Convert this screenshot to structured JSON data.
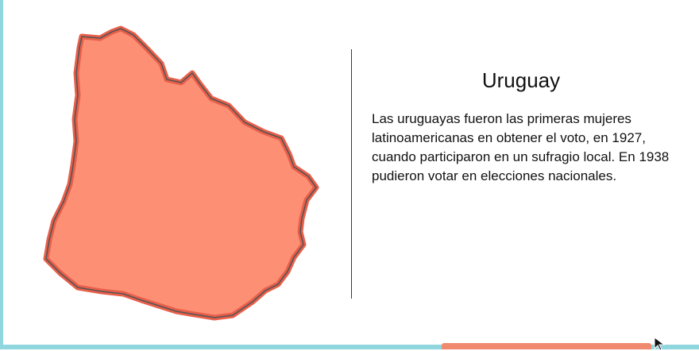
{
  "country": {
    "name": "Uruguay",
    "description": "Las uruguayas fueron las primeras mujeres latinoamericanas en obtener el voto, en 1927, cuando participaron en un sufragio local. En 1938 pudieron votar en elecciones nacionales."
  },
  "colors": {
    "map_fill": "#fd8f74",
    "map_stroke": "#e85f4a",
    "map_outline": "#555555",
    "frame": "#8fd6de"
  },
  "icons": {
    "cursor": "arrow-pointer-icon"
  }
}
